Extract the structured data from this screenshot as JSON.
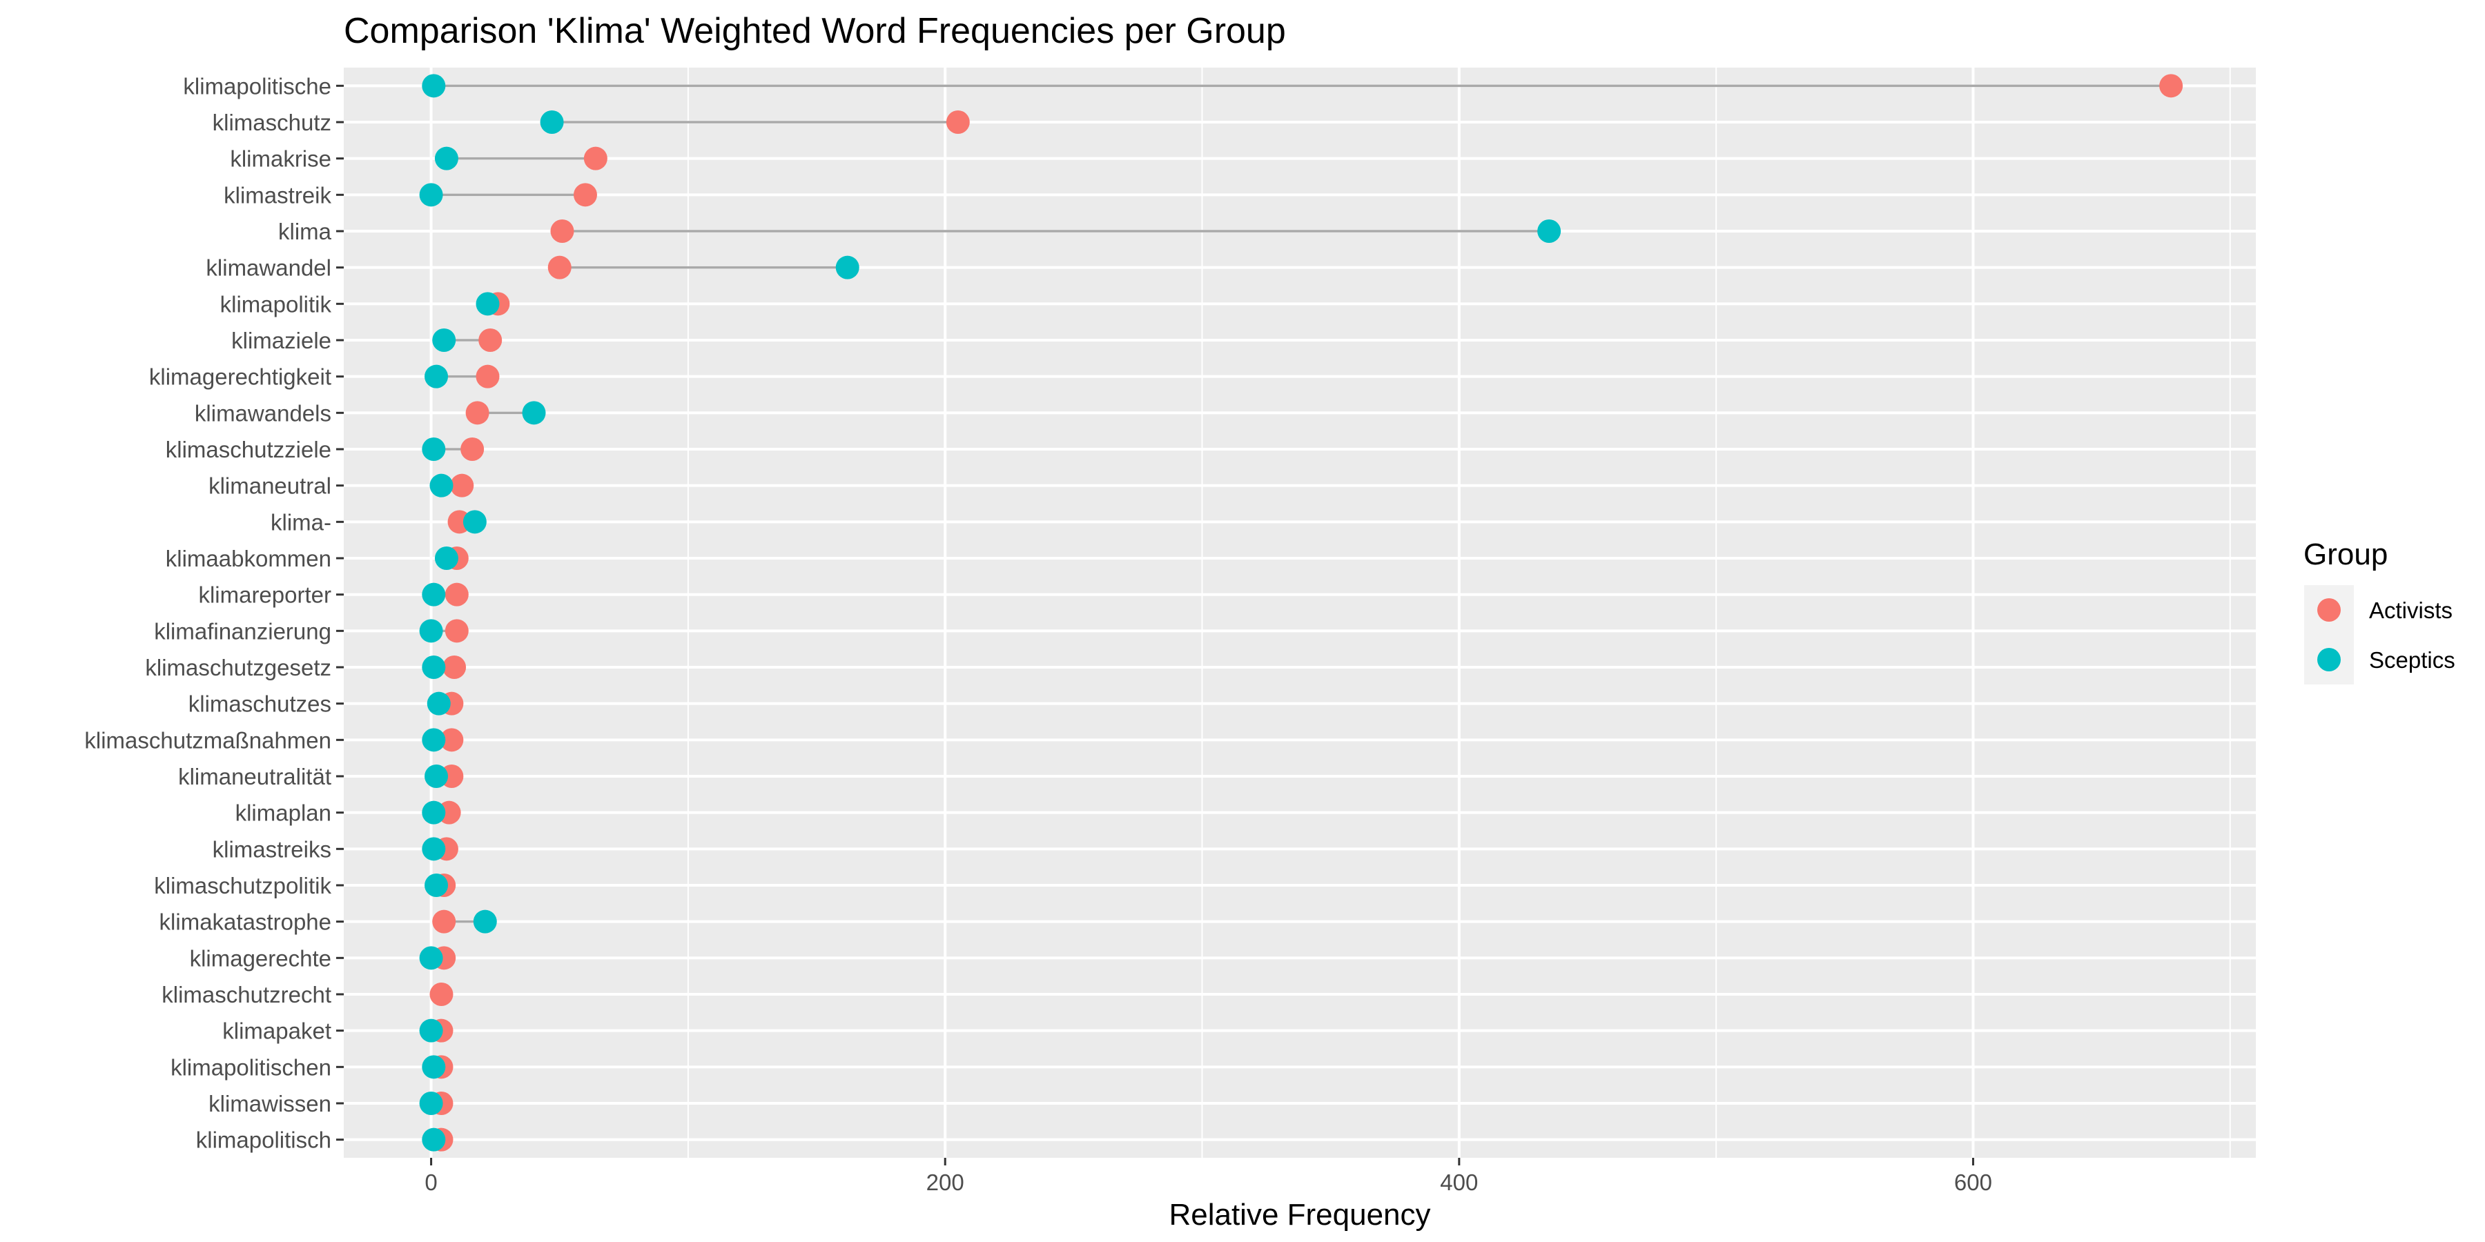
{
  "chart_data": {
    "type": "dumbbell",
    "title": "Comparison 'Klima' Weighted Word Frequencies per Group",
    "xlabel": "Relative Frequency",
    "ylabel": "",
    "xlim": [
      -34,
      710
    ],
    "xticks": [
      0,
      200,
      400,
      600
    ],
    "grid": true,
    "legend": {
      "title": "Group",
      "position": "right",
      "entries": [
        {
          "name": "Activists",
          "color": "#F8766D"
        },
        {
          "name": "Sceptics",
          "color": "#00BFC4"
        }
      ]
    },
    "categories": [
      "klimapolitische",
      "klimaschutz",
      "klimakrise",
      "klimastreik",
      "klima",
      "klimawandel",
      "klimapolitik",
      "klimaziele",
      "klimagerechtigkeit",
      "klimawandels",
      "klimaschutzziele",
      "klimaneutral",
      "klima-",
      "klimaabkommen",
      "klimareporter",
      "klimafinanzierung",
      "klimaschutzgesetz",
      "klimaschutzes",
      "klimaschutzmaßnahmen",
      "klimaneutralität",
      "klimaplan",
      "klimastreiks",
      "klimaschutzpolitik",
      "klimakatastrophe",
      "klimagerechte",
      "klimaschutzrecht",
      "klimapaket",
      "klimapolitischen",
      "klimawissen",
      "klimapolitisch"
    ],
    "series": [
      {
        "name": "Activists",
        "color": "#F8766D",
        "values": [
          677,
          205,
          64,
          60,
          51,
          50,
          26,
          23,
          22,
          18,
          16,
          12,
          11,
          10,
          10,
          10,
          9,
          8,
          8,
          8,
          7,
          6,
          5,
          5,
          5,
          4,
          4,
          4,
          4,
          4
        ]
      },
      {
        "name": "Sceptics",
        "color": "#00BFC4",
        "values": [
          1,
          47,
          6,
          0,
          435,
          162,
          22,
          5,
          2,
          40,
          1,
          4,
          17,
          6,
          1,
          0,
          1,
          3,
          1,
          2,
          1,
          1,
          2,
          21,
          0,
          null,
          0,
          1,
          0,
          1
        ]
      }
    ]
  }
}
